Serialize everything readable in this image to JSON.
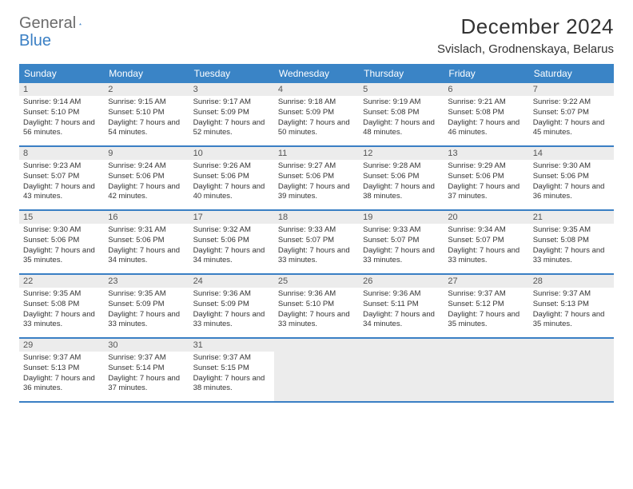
{
  "logo": {
    "word1": "General",
    "word2": "Blue"
  },
  "title": "December 2024",
  "location": "Svislach, Grodnenskaya, Belarus",
  "colors": {
    "header_bg": "#3a84c6",
    "accent": "#3a7fc4",
    "shaded": "#ececec",
    "text": "#333333",
    "logo_gray": "#6b6b6b"
  },
  "day_labels": [
    "Sunday",
    "Monday",
    "Tuesday",
    "Wednesday",
    "Thursday",
    "Friday",
    "Saturday"
  ],
  "weeks": [
    [
      {
        "n": "1",
        "sr": "Sunrise: 9:14 AM",
        "ss": "Sunset: 5:10 PM",
        "dl": "Daylight: 7 hours and 56 minutes."
      },
      {
        "n": "2",
        "sr": "Sunrise: 9:15 AM",
        "ss": "Sunset: 5:10 PM",
        "dl": "Daylight: 7 hours and 54 minutes."
      },
      {
        "n": "3",
        "sr": "Sunrise: 9:17 AM",
        "ss": "Sunset: 5:09 PM",
        "dl": "Daylight: 7 hours and 52 minutes."
      },
      {
        "n": "4",
        "sr": "Sunrise: 9:18 AM",
        "ss": "Sunset: 5:09 PM",
        "dl": "Daylight: 7 hours and 50 minutes."
      },
      {
        "n": "5",
        "sr": "Sunrise: 9:19 AM",
        "ss": "Sunset: 5:08 PM",
        "dl": "Daylight: 7 hours and 48 minutes."
      },
      {
        "n": "6",
        "sr": "Sunrise: 9:21 AM",
        "ss": "Sunset: 5:08 PM",
        "dl": "Daylight: 7 hours and 46 minutes."
      },
      {
        "n": "7",
        "sr": "Sunrise: 9:22 AM",
        "ss": "Sunset: 5:07 PM",
        "dl": "Daylight: 7 hours and 45 minutes."
      }
    ],
    [
      {
        "n": "8",
        "sr": "Sunrise: 9:23 AM",
        "ss": "Sunset: 5:07 PM",
        "dl": "Daylight: 7 hours and 43 minutes."
      },
      {
        "n": "9",
        "sr": "Sunrise: 9:24 AM",
        "ss": "Sunset: 5:06 PM",
        "dl": "Daylight: 7 hours and 42 minutes."
      },
      {
        "n": "10",
        "sr": "Sunrise: 9:26 AM",
        "ss": "Sunset: 5:06 PM",
        "dl": "Daylight: 7 hours and 40 minutes."
      },
      {
        "n": "11",
        "sr": "Sunrise: 9:27 AM",
        "ss": "Sunset: 5:06 PM",
        "dl": "Daylight: 7 hours and 39 minutes."
      },
      {
        "n": "12",
        "sr": "Sunrise: 9:28 AM",
        "ss": "Sunset: 5:06 PM",
        "dl": "Daylight: 7 hours and 38 minutes."
      },
      {
        "n": "13",
        "sr": "Sunrise: 9:29 AM",
        "ss": "Sunset: 5:06 PM",
        "dl": "Daylight: 7 hours and 37 minutes."
      },
      {
        "n": "14",
        "sr": "Sunrise: 9:30 AM",
        "ss": "Sunset: 5:06 PM",
        "dl": "Daylight: 7 hours and 36 minutes."
      }
    ],
    [
      {
        "n": "15",
        "sr": "Sunrise: 9:30 AM",
        "ss": "Sunset: 5:06 PM",
        "dl": "Daylight: 7 hours and 35 minutes."
      },
      {
        "n": "16",
        "sr": "Sunrise: 9:31 AM",
        "ss": "Sunset: 5:06 PM",
        "dl": "Daylight: 7 hours and 34 minutes."
      },
      {
        "n": "17",
        "sr": "Sunrise: 9:32 AM",
        "ss": "Sunset: 5:06 PM",
        "dl": "Daylight: 7 hours and 34 minutes."
      },
      {
        "n": "18",
        "sr": "Sunrise: 9:33 AM",
        "ss": "Sunset: 5:07 PM",
        "dl": "Daylight: 7 hours and 33 minutes."
      },
      {
        "n": "19",
        "sr": "Sunrise: 9:33 AM",
        "ss": "Sunset: 5:07 PM",
        "dl": "Daylight: 7 hours and 33 minutes."
      },
      {
        "n": "20",
        "sr": "Sunrise: 9:34 AM",
        "ss": "Sunset: 5:07 PM",
        "dl": "Daylight: 7 hours and 33 minutes."
      },
      {
        "n": "21",
        "sr": "Sunrise: 9:35 AM",
        "ss": "Sunset: 5:08 PM",
        "dl": "Daylight: 7 hours and 33 minutes."
      }
    ],
    [
      {
        "n": "22",
        "sr": "Sunrise: 9:35 AM",
        "ss": "Sunset: 5:08 PM",
        "dl": "Daylight: 7 hours and 33 minutes."
      },
      {
        "n": "23",
        "sr": "Sunrise: 9:35 AM",
        "ss": "Sunset: 5:09 PM",
        "dl": "Daylight: 7 hours and 33 minutes."
      },
      {
        "n": "24",
        "sr": "Sunrise: 9:36 AM",
        "ss": "Sunset: 5:09 PM",
        "dl": "Daylight: 7 hours and 33 minutes."
      },
      {
        "n": "25",
        "sr": "Sunrise: 9:36 AM",
        "ss": "Sunset: 5:10 PM",
        "dl": "Daylight: 7 hours and 33 minutes."
      },
      {
        "n": "26",
        "sr": "Sunrise: 9:36 AM",
        "ss": "Sunset: 5:11 PM",
        "dl": "Daylight: 7 hours and 34 minutes."
      },
      {
        "n": "27",
        "sr": "Sunrise: 9:37 AM",
        "ss": "Sunset: 5:12 PM",
        "dl": "Daylight: 7 hours and 35 minutes."
      },
      {
        "n": "28",
        "sr": "Sunrise: 9:37 AM",
        "ss": "Sunset: 5:13 PM",
        "dl": "Daylight: 7 hours and 35 minutes."
      }
    ],
    [
      {
        "n": "29",
        "sr": "Sunrise: 9:37 AM",
        "ss": "Sunset: 5:13 PM",
        "dl": "Daylight: 7 hours and 36 minutes."
      },
      {
        "n": "30",
        "sr": "Sunrise: 9:37 AM",
        "ss": "Sunset: 5:14 PM",
        "dl": "Daylight: 7 hours and 37 minutes."
      },
      {
        "n": "31",
        "sr": "Sunrise: 9:37 AM",
        "ss": "Sunset: 5:15 PM",
        "dl": "Daylight: 7 hours and 38 minutes."
      },
      {
        "empty": true
      },
      {
        "empty": true
      },
      {
        "empty": true
      },
      {
        "empty": true
      }
    ]
  ]
}
